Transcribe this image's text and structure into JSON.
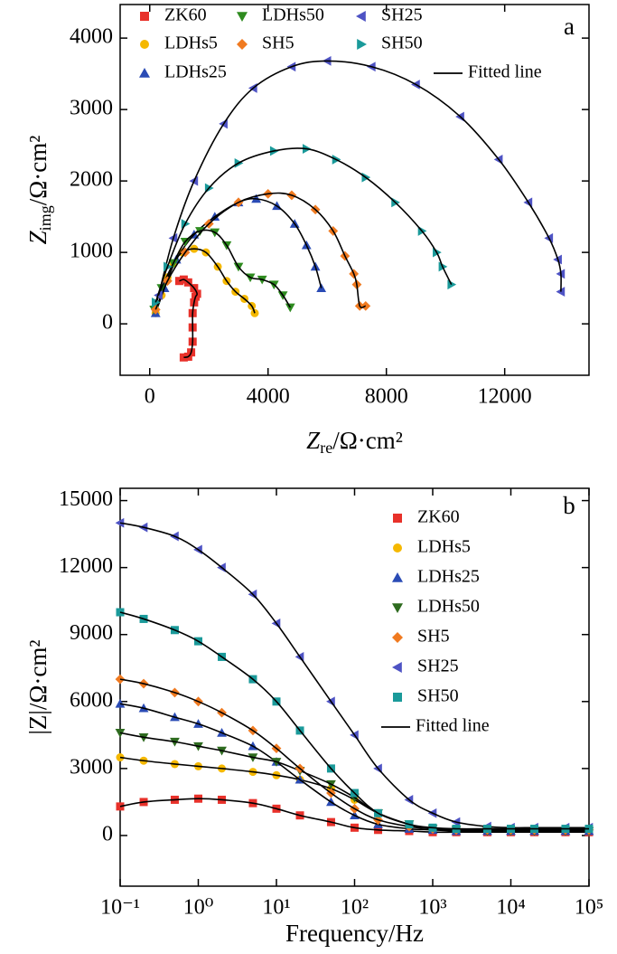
{
  "chart_data": [
    {
      "type": "scatter",
      "panel_label": "a",
      "xlabel": {
        "main": "Z",
        "sub": "re",
        "rest": "/Ω·cm²"
      },
      "ylabel": {
        "main": "Z",
        "sub": "img",
        "rest": "/Ω·cm²"
      },
      "xlim": [
        -1000,
        14850
      ],
      "xticks": [
        0,
        4000,
        8000,
        12000
      ],
      "ylim": [
        -720,
        4470
      ],
      "yticks": [
        0,
        1000,
        2000,
        3000,
        4000
      ],
      "legend": "top",
      "fit_line": {
        "name": "Fitted line",
        "color": "#000000"
      },
      "series": [
        {
          "name": "ZK60",
          "color": "#e8312a",
          "marker": "square",
          "x": [
            1150,
            1300,
            1400,
            1450,
            1450,
            1450,
            1500,
            1550,
            1600,
            1500,
            1300,
            1150,
            1000
          ],
          "values": [
            -470,
            -460,
            -400,
            -250,
            -50,
            150,
            300,
            380,
            420,
            500,
            580,
            620,
            600
          ]
        },
        {
          "name": "LDHs5",
          "color": "#f5b800",
          "marker": "circle",
          "x": [
            200,
            400,
            600,
            800,
            1100,
            1500,
            1900,
            2300,
            2600,
            2900,
            3200,
            3450,
            3550
          ],
          "values": [
            150,
            400,
            650,
            850,
            1000,
            1050,
            1000,
            800,
            600,
            450,
            350,
            250,
            150
          ]
        },
        {
          "name": "LDHs25",
          "color": "#2a4bb5",
          "marker": "up",
          "x": [
            200,
            500,
            900,
            1500,
            2200,
            3000,
            3600,
            4300,
            4900,
            5300,
            5600,
            5800
          ],
          "values": [
            150,
            500,
            900,
            1250,
            1500,
            1700,
            1750,
            1650,
            1400,
            1100,
            800,
            500
          ]
        },
        {
          "name": "LDHs50",
          "color": "#2e8b1f",
          "marker": "down",
          "x": [
            150,
            400,
            800,
            1200,
            1700,
            2200,
            2600,
            3000,
            3400,
            3800,
            4200,
            4500,
            4750
          ],
          "values": [
            200,
            500,
            850,
            1150,
            1300,
            1280,
            1100,
            800,
            650,
            620,
            550,
            400,
            230
          ]
        },
        {
          "name": "SH5",
          "color": "#f07a20",
          "marker": "diamond",
          "x": [
            200,
            600,
            1200,
            2000,
            3000,
            4000,
            4800,
            5600,
            6200,
            6600,
            6900,
            7000,
            7100,
            7300
          ],
          "values": [
            200,
            600,
            1000,
            1400,
            1700,
            1820,
            1800,
            1600,
            1300,
            950,
            700,
            550,
            250,
            250
          ]
        },
        {
          "name": "SH25",
          "color": "#4e53c4",
          "marker": "left",
          "x": [
            300,
            800,
            1500,
            2500,
            3500,
            4800,
            6000,
            7500,
            9000,
            10500,
            11800,
            12800,
            13500,
            13800,
            13900,
            13900
          ],
          "values": [
            400,
            1200,
            2000,
            2800,
            3300,
            3600,
            3680,
            3600,
            3350,
            2900,
            2300,
            1700,
            1200,
            900,
            700,
            450
          ]
        },
        {
          "name": "SH50",
          "color": "#1a9a9a",
          "marker": "right",
          "x": [
            200,
            600,
            1200,
            2000,
            3000,
            4200,
            5300,
            6300,
            7300,
            8300,
            9200,
            9700,
            9900,
            10200
          ],
          "values": [
            300,
            800,
            1400,
            1900,
            2250,
            2420,
            2450,
            2300,
            2050,
            1700,
            1300,
            1000,
            800,
            550
          ]
        }
      ]
    },
    {
      "type": "scatter",
      "panel_label": "b",
      "xscale": "log",
      "xlabel": {
        "rest": "Frequency/Hz"
      },
      "ylabel": {
        "rest": "|Z|/Ω·cm²"
      },
      "xlim": [
        0.1,
        100000
      ],
      "xticks": [
        {
          "value": 0.1,
          "label": "10⁻¹"
        },
        {
          "value": 1,
          "label": "10⁰"
        },
        {
          "value": 10,
          "label": "10¹"
        },
        {
          "value": 100,
          "label": "10²"
        },
        {
          "value": 1000,
          "label": "10³"
        },
        {
          "value": 10000,
          "label": "10⁴"
        },
        {
          "value": 100000,
          "label": "10⁵"
        }
      ],
      "ylim": [
        -2270,
        15550
      ],
      "yticks": [
        0,
        3000,
        6000,
        9000,
        12000,
        15000
      ],
      "legend": "right",
      "fit_line": {
        "name": "Fitted line",
        "color": "#000000"
      },
      "x": [
        0.1,
        0.2,
        0.5,
        1,
        2,
        5,
        10,
        20,
        50,
        100,
        200,
        500,
        1000,
        2000,
        5000,
        10000,
        20000,
        50000,
        100000
      ],
      "series": [
        {
          "name": "ZK60",
          "color": "#e8312a",
          "marker": "square",
          "values": [
            1300,
            1500,
            1600,
            1650,
            1600,
            1450,
            1200,
            900,
            600,
            350,
            250,
            200,
            150,
            150,
            150,
            150,
            150,
            150,
            150
          ]
        },
        {
          "name": "LDHs5",
          "color": "#f5b800",
          "marker": "circle",
          "values": [
            3500,
            3350,
            3200,
            3100,
            3000,
            2850,
            2700,
            2500,
            2100,
            1600,
            1000,
            500,
            300,
            250,
            200,
            200,
            200,
            200,
            200
          ]
        },
        {
          "name": "LDHs25",
          "color": "#2a4bb5",
          "marker": "up",
          "values": [
            5900,
            5700,
            5300,
            5000,
            4600,
            4000,
            3300,
            2500,
            1500,
            900,
            500,
            300,
            250,
            200,
            200,
            200,
            200,
            200,
            200
          ]
        },
        {
          "name": "LDHs50",
          "color": "#2e6b1f",
          "marker": "down",
          "values": [
            4600,
            4400,
            4200,
            4000,
            3800,
            3500,
            3300,
            2900,
            2300,
            1700,
            1000,
            500,
            300,
            250,
            200,
            200,
            200,
            200,
            200
          ]
        },
        {
          "name": "SH5",
          "color": "#f07a20",
          "marker": "diamond",
          "values": [
            7000,
            6800,
            6400,
            6000,
            5500,
            4700,
            3900,
            3000,
            1900,
            1200,
            700,
            400,
            300,
            250,
            250,
            250,
            250,
            250,
            250
          ]
        },
        {
          "name": "SH25",
          "color": "#4e53c4",
          "marker": "left",
          "values": [
            14000,
            13800,
            13400,
            12800,
            12000,
            10800,
            9500,
            8000,
            6000,
            4500,
            3000,
            1600,
            1000,
            600,
            400,
            350,
            350,
            350,
            350
          ]
        },
        {
          "name": "SH50",
          "color": "#1a9a9a",
          "marker": "square",
          "values": [
            10000,
            9700,
            9200,
            8700,
            8000,
            7000,
            6000,
            4700,
            3000,
            1900,
            1000,
            500,
            350,
            300,
            300,
            300,
            300,
            300,
            300
          ]
        }
      ]
    }
  ]
}
